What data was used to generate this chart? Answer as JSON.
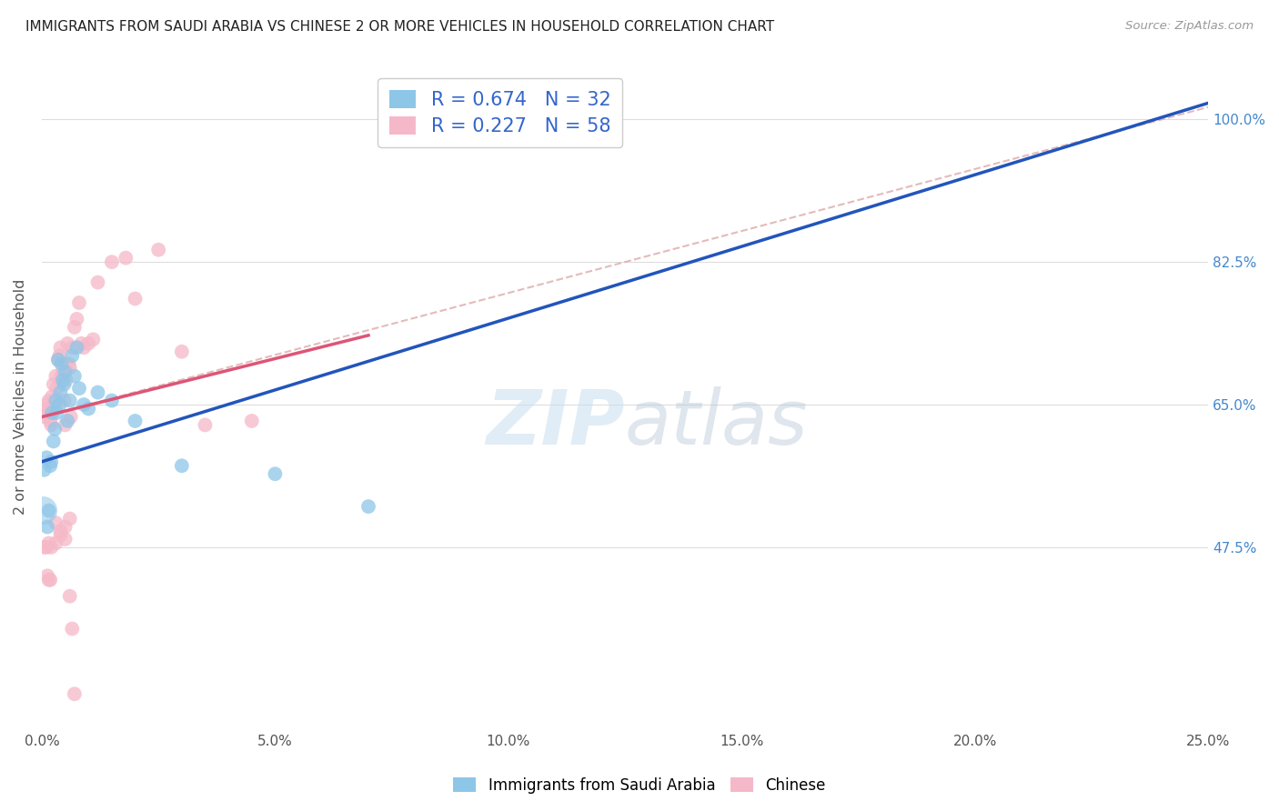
{
  "title": "IMMIGRANTS FROM SAUDI ARABIA VS CHINESE 2 OR MORE VEHICLES IN HOUSEHOLD CORRELATION CHART",
  "source": "Source: ZipAtlas.com",
  "ylabel": "2 or more Vehicles in Household",
  "R1": 0.674,
  "N1": 32,
  "R2": 0.227,
  "N2": 58,
  "color_saudi": "#8ec6e8",
  "color_chinese": "#f5b8c8",
  "color_line_saudi": "#2255bb",
  "color_line_chinese": "#dd5577",
  "color_dash": "#ccaaaa",
  "legend_label1": "Immigrants from Saudi Arabia",
  "legend_label2": "Chinese",
  "x_tick_vals": [
    0,
    5,
    10,
    15,
    20,
    25
  ],
  "y_tick_vals": [
    47.5,
    65.0,
    82.5,
    100.0
  ],
  "x_min": 0.0,
  "x_max": 25.0,
  "y_min": 25.0,
  "y_max": 107.0,
  "saudi_x": [
    0.05,
    0.1,
    0.12,
    0.15,
    0.18,
    0.2,
    0.22,
    0.25,
    0.28,
    0.3,
    0.32,
    0.35,
    0.38,
    0.4,
    0.42,
    0.45,
    0.48,
    0.5,
    0.55,
    0.6,
    0.65,
    0.7,
    0.75,
    0.8,
    0.9,
    1.0,
    1.2,
    1.5,
    2.0,
    3.0,
    5.0,
    7.0
  ],
  "saudi_y": [
    57.0,
    58.5,
    50.0,
    52.0,
    57.5,
    58.0,
    64.0,
    60.5,
    62.0,
    65.5,
    64.0,
    70.5,
    65.0,
    66.5,
    70.0,
    68.0,
    67.5,
    69.0,
    63.0,
    65.5,
    71.0,
    68.5,
    72.0,
    67.0,
    65.0,
    64.5,
    66.5,
    65.5,
    63.0,
    57.5,
    56.5,
    52.5
  ],
  "chinese_x": [
    0.05,
    0.08,
    0.1,
    0.12,
    0.15,
    0.18,
    0.2,
    0.22,
    0.25,
    0.28,
    0.3,
    0.32,
    0.35,
    0.38,
    0.4,
    0.42,
    0.45,
    0.48,
    0.5,
    0.52,
    0.55,
    0.58,
    0.6,
    0.62,
    0.65,
    0.7,
    0.75,
    0.8,
    0.85,
    0.9,
    1.0,
    1.1,
    1.2,
    1.5,
    1.8,
    2.0,
    2.5,
    3.0,
    3.5,
    4.5,
    0.3,
    0.4,
    0.5,
    0.6,
    0.3,
    0.4,
    0.5,
    0.05,
    0.1,
    0.15,
    0.2,
    0.12,
    0.15,
    0.18,
    0.6,
    0.65,
    0.7,
    0.5
  ],
  "chinese_y": [
    63.5,
    64.0,
    65.0,
    64.5,
    65.5,
    63.0,
    62.5,
    66.0,
    67.5,
    65.0,
    68.5,
    67.0,
    70.5,
    71.0,
    72.0,
    68.5,
    69.0,
    65.5,
    70.0,
    68.0,
    72.5,
    70.0,
    69.5,
    63.5,
    72.0,
    74.5,
    75.5,
    77.5,
    72.5,
    72.0,
    72.5,
    73.0,
    80.0,
    82.5,
    83.0,
    78.0,
    84.0,
    71.5,
    62.5,
    63.0,
    50.5,
    49.0,
    50.0,
    51.0,
    48.0,
    49.5,
    48.5,
    47.5,
    47.5,
    48.0,
    47.5,
    44.0,
    43.5,
    43.5,
    41.5,
    37.5,
    29.5,
    62.5
  ],
  "line1_x0": 0.0,
  "line1_y0": 58.0,
  "line1_x1": 25.0,
  "line1_y1": 102.0,
  "line2_x0": 0.0,
  "line2_y0": 63.5,
  "line2_x1": 7.0,
  "line2_y1": 73.5,
  "dash_x0": 0.0,
  "dash_y0": 63.5,
  "dash_x1": 25.0,
  "dash_y1": 101.5
}
